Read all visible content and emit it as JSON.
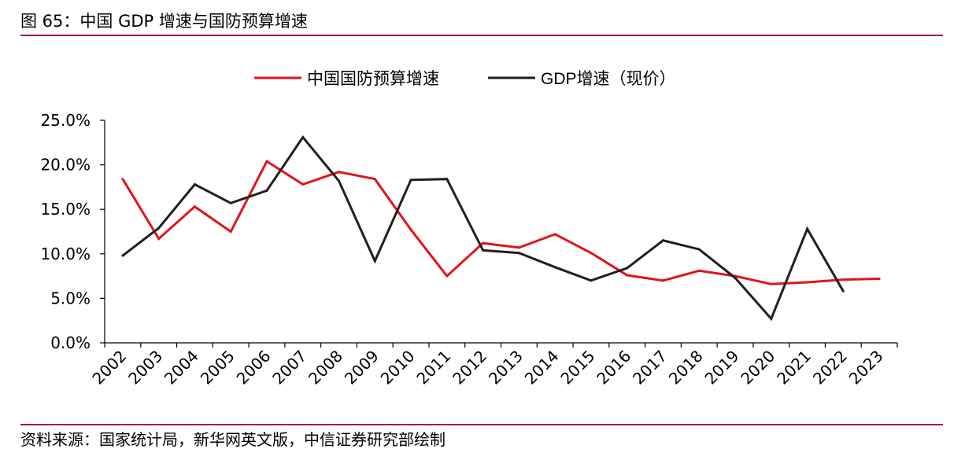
{
  "header": {
    "title": "图 65：中国 GDP 增速与国防预算增速"
  },
  "footer": {
    "source": "资料来源：国家统计局，新华网英文版，中信证券研究部绘制"
  },
  "chart_data": {
    "type": "line",
    "title": "",
    "xlabel": "",
    "ylabel": "",
    "ylim": [
      0,
      25
    ],
    "y_ticks": [
      "0.0%",
      "5.0%",
      "10.0%",
      "15.0%",
      "20.0%",
      "25.0%"
    ],
    "y_tick_values": [
      0,
      5,
      10,
      15,
      20,
      25
    ],
    "categories": [
      "2002",
      "2003",
      "2004",
      "2005",
      "2006",
      "2007",
      "2008",
      "2009",
      "2010",
      "2011",
      "2012",
      "2013",
      "2014",
      "2015",
      "2016",
      "2017",
      "2018",
      "2019",
      "2020",
      "2021",
      "2022",
      "2023"
    ],
    "legend_position": "top-center",
    "grid": false,
    "series": [
      {
        "name": "中国国防预算增速",
        "color": "#e0141e",
        "values": [
          18.4,
          11.7,
          15.3,
          12.5,
          20.4,
          17.8,
          19.2,
          18.4,
          12.7,
          7.5,
          11.2,
          10.7,
          12.2,
          10.1,
          7.6,
          7.0,
          8.1,
          7.5,
          6.6,
          6.8,
          7.1,
          7.2
        ]
      },
      {
        "name": "GDP增速（现价）",
        "color": "#231f20",
        "values": [
          9.8,
          12.9,
          17.8,
          15.7,
          17.1,
          23.1,
          18.2,
          9.2,
          18.3,
          18.4,
          10.4,
          10.1,
          8.5,
          7.0,
          8.4,
          11.5,
          10.5,
          7.3,
          2.7,
          12.8,
          5.8,
          null
        ]
      }
    ]
  }
}
